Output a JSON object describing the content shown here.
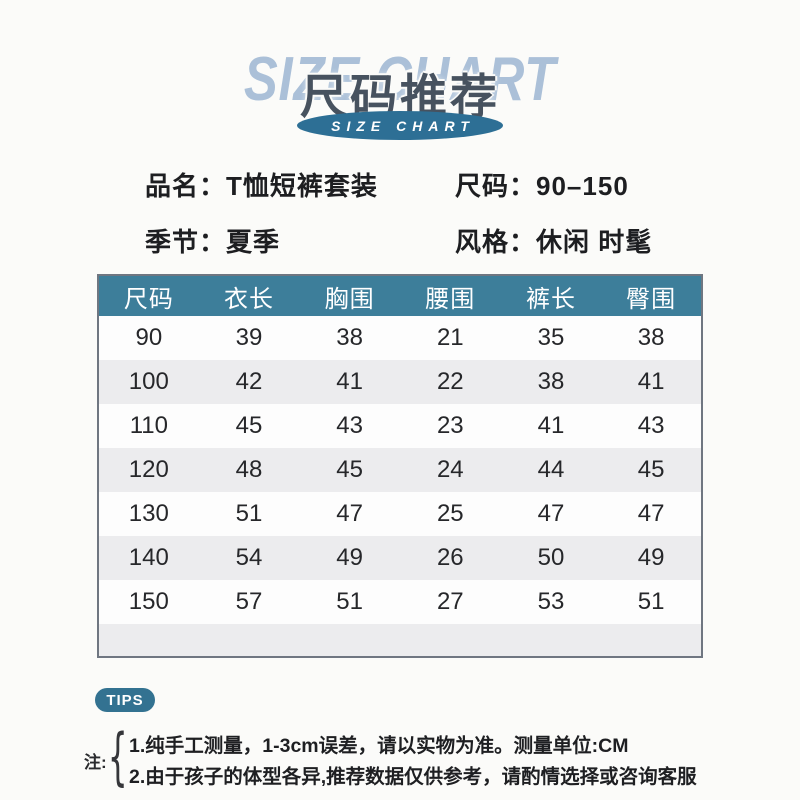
{
  "hero": {
    "title_en": "SIZE CHART",
    "title_cn": "尺码推荐",
    "ribbon_label": "SIZE CHART"
  },
  "product_info": {
    "fields": [
      {
        "label": "品名：",
        "value": "T恤短裤套装"
      },
      {
        "label": "尺码：",
        "value": "90–150"
      },
      {
        "label": "季节：",
        "value": "夏季"
      },
      {
        "label": "风格：",
        "value": "休闲 时髦"
      }
    ]
  },
  "chart_data": {
    "type": "table",
    "title": "尺码推荐 (Size Chart)",
    "columns": [
      "尺码",
      "衣长",
      "胸围",
      "腰围",
      "裤长",
      "臀围"
    ],
    "rows": [
      [
        "90",
        "39",
        "38",
        "21",
        "35",
        "38"
      ],
      [
        "100",
        "42",
        "41",
        "22",
        "38",
        "41"
      ],
      [
        "110",
        "45",
        "43",
        "23",
        "41",
        "43"
      ],
      [
        "120",
        "48",
        "45",
        "24",
        "44",
        "45"
      ],
      [
        "130",
        "51",
        "47",
        "25",
        "47",
        "47"
      ],
      [
        "140",
        "54",
        "49",
        "26",
        "50",
        "49"
      ],
      [
        "150",
        "57",
        "51",
        "27",
        "53",
        "51"
      ]
    ],
    "unit": "CM"
  },
  "tips": {
    "badge": "TIPS",
    "note_label": "注:",
    "brace": "{",
    "notes": [
      "1.纯手工测量，1-3cm误差，请以实物为准。测量单位:CM",
      "2.由于孩子的体型各异,推荐数据仅供参考，请酌情选择或咨询客服"
    ]
  },
  "colors": {
    "table_header_teal": "#3d7e9a",
    "ribbon_teal": "#2d6f95",
    "tips_teal": "#337291",
    "hero_light_blue": "#abc0d8",
    "hero_dark_text": "#47525f",
    "row_alt_gray": "#ececee",
    "table_border": "#6f7681",
    "background": "#fbfbf9"
  }
}
